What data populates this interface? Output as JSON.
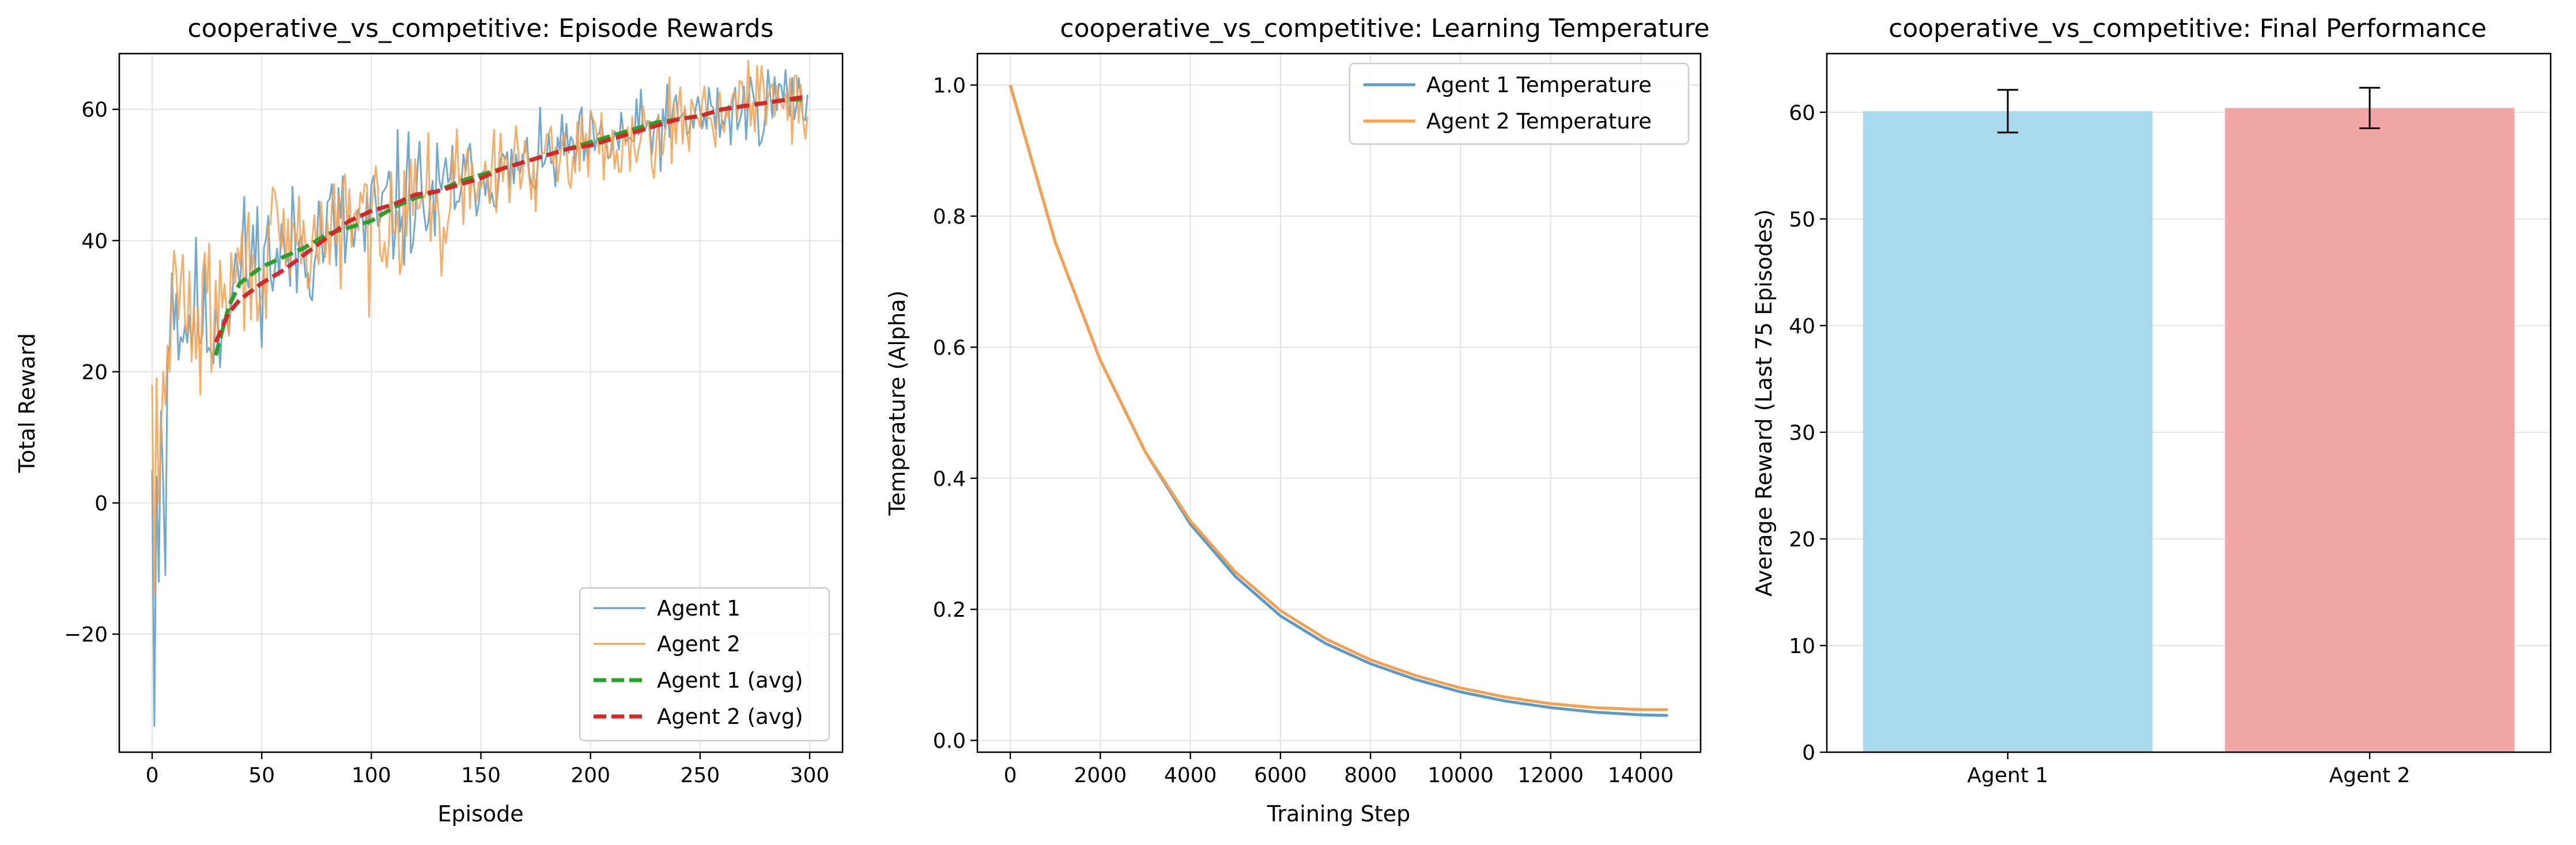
{
  "chart_data": [
    {
      "type": "line",
      "title": "cooperative_vs_competitive: Episode Rewards",
      "xlabel": "Episode",
      "ylabel": "Total Reward",
      "xlim": [
        -15,
        315
      ],
      "ylim": [
        -38,
        68.5
      ],
      "xticks": [
        0,
        50,
        100,
        150,
        200,
        250,
        300
      ],
      "yticks": [
        -20,
        0,
        20,
        40,
        60
      ],
      "grid": true,
      "legend_position": "lower-right",
      "series": [
        {
          "name": "Agent 1",
          "color": "#5b9ac6",
          "style": "solid-thin",
          "noisy": true,
          "seed": 11,
          "noise_scale": 4.0,
          "x": [
            0,
            1,
            2,
            3,
            4,
            5,
            6,
            7,
            8,
            9,
            10,
            12,
            15,
            20,
            25,
            30,
            40,
            50,
            60,
            70,
            80,
            90,
            100,
            110,
            120,
            130,
            140,
            150,
            160,
            170,
            180,
            190,
            200,
            210,
            220,
            230,
            240,
            250,
            260,
            270,
            280,
            290,
            299
          ],
          "y": [
            5,
            -34,
            4,
            -12,
            14,
            3,
            -11,
            22,
            24,
            35,
            33,
            28,
            27,
            30,
            26,
            28,
            36,
            38,
            37,
            39,
            42,
            41,
            42,
            45,
            47,
            45,
            49,
            50,
            50,
            51,
            52,
            54,
            54,
            55,
            56,
            57,
            58,
            59,
            59,
            60,
            61,
            62,
            61
          ]
        },
        {
          "name": "Agent 2",
          "color": "#f5a04f",
          "style": "solid-thin",
          "noisy": true,
          "seed": 29,
          "noise_scale": 4.0,
          "x": [
            0,
            1,
            2,
            3,
            4,
            5,
            6,
            7,
            8,
            9,
            10,
            12,
            15,
            20,
            25,
            30,
            40,
            50,
            60,
            70,
            80,
            90,
            100,
            110,
            120,
            130,
            140,
            150,
            160,
            170,
            180,
            190,
            200,
            210,
            220,
            230,
            240,
            250,
            260,
            270,
            280,
            290,
            299
          ],
          "y": [
            18,
            -14,
            19,
            0,
            10,
            20,
            15,
            24,
            20,
            32,
            35,
            30,
            33,
            25,
            30,
            29,
            35,
            37,
            38,
            40,
            41,
            43,
            42,
            46,
            48,
            44,
            48,
            49,
            51,
            52,
            51,
            54,
            55,
            55,
            56,
            57,
            58,
            60,
            60,
            61,
            61,
            62,
            60
          ]
        },
        {
          "name": "Agent 1 (avg)",
          "color": "#2ca02c",
          "style": "dashed-thick",
          "x": [
            29,
            35,
            40,
            50,
            60,
            70,
            80,
            90,
            100,
            110,
            120,
            130,
            140,
            150,
            160,
            170,
            180,
            190,
            200,
            210,
            220,
            230,
            240,
            250,
            260,
            270,
            280,
            290,
            299
          ],
          "y": [
            22.5,
            30,
            33.5,
            36,
            37.5,
            39,
            41,
            42,
            43,
            45,
            46.5,
            47.5,
            49,
            50,
            51,
            52,
            53,
            54,
            55,
            56,
            57,
            58,
            58.5,
            59,
            60,
            60.5,
            61,
            61.5,
            61.5
          ]
        },
        {
          "name": "Agent 2 (avg)",
          "color": "#d62728",
          "style": "dashed-thick",
          "x": [
            29,
            35,
            40,
            50,
            60,
            70,
            80,
            90,
            100,
            110,
            120,
            130,
            140,
            150,
            160,
            170,
            180,
            190,
            200,
            210,
            220,
            230,
            240,
            250,
            260,
            270,
            280,
            290,
            299
          ],
          "y": [
            24.5,
            29,
            31,
            33.5,
            35.5,
            38,
            40.5,
            43,
            44.5,
            45.5,
            47,
            47.5,
            48.5,
            49.5,
            51,
            52,
            53,
            54,
            54.5,
            55.5,
            56.5,
            57.5,
            58.5,
            59,
            60,
            60.5,
            61,
            61.5,
            62
          ]
        }
      ]
    },
    {
      "type": "line",
      "title": "cooperative_vs_competitive: Learning Temperature",
      "xlabel": "Training Step",
      "ylabel": "Temperature (Alpha)",
      "xlim": [
        -730,
        15330
      ],
      "ylim": [
        -0.018,
        1.048
      ],
      "xticks": [
        0,
        2000,
        4000,
        6000,
        8000,
        10000,
        12000,
        14000
      ],
      "yticks": [
        0.0,
        0.2,
        0.4,
        0.6,
        0.8,
        1.0
      ],
      "ytick_labels": [
        "0.0",
        "0.2",
        "0.4",
        "0.6",
        "0.8",
        "1.0"
      ],
      "grid": true,
      "legend_position": "upper-right",
      "series": [
        {
          "name": "Agent 1 Temperature",
          "color": "#5b9ac6",
          "style": "solid",
          "x": [
            0,
            1000,
            2000,
            3000,
            4000,
            5000,
            6000,
            7000,
            8000,
            9000,
            10000,
            11000,
            12000,
            13000,
            14000,
            14600
          ],
          "y": [
            1.0,
            0.76,
            0.58,
            0.44,
            0.33,
            0.25,
            0.19,
            0.148,
            0.117,
            0.093,
            0.074,
            0.06,
            0.05,
            0.043,
            0.039,
            0.038
          ]
        },
        {
          "name": "Agent 2 Temperature",
          "color": "#f5a04f",
          "style": "solid",
          "x": [
            0,
            1000,
            2000,
            3000,
            4000,
            5000,
            6000,
            7000,
            8000,
            9000,
            10000,
            11000,
            12000,
            13000,
            14000,
            14600
          ],
          "y": [
            1.0,
            0.76,
            0.58,
            0.44,
            0.335,
            0.257,
            0.198,
            0.155,
            0.123,
            0.099,
            0.08,
            0.066,
            0.056,
            0.05,
            0.047,
            0.047
          ]
        }
      ]
    },
    {
      "type": "bar",
      "title": "cooperative_vs_competitive: Final Performance",
      "xlabel": "",
      "ylabel": "Average Reward (Last 75 Episodes)",
      "categories": [
        "Agent 1",
        "Agent 2"
      ],
      "values": [
        60.1,
        60.4
      ],
      "errors": [
        2.0,
        1.9
      ],
      "colors": [
        "#a8d9ec",
        "#f2a6a6"
      ],
      "ylim": [
        0,
        65.5
      ],
      "yticks": [
        0,
        10,
        20,
        30,
        40,
        50,
        60
      ],
      "grid": true
    }
  ]
}
